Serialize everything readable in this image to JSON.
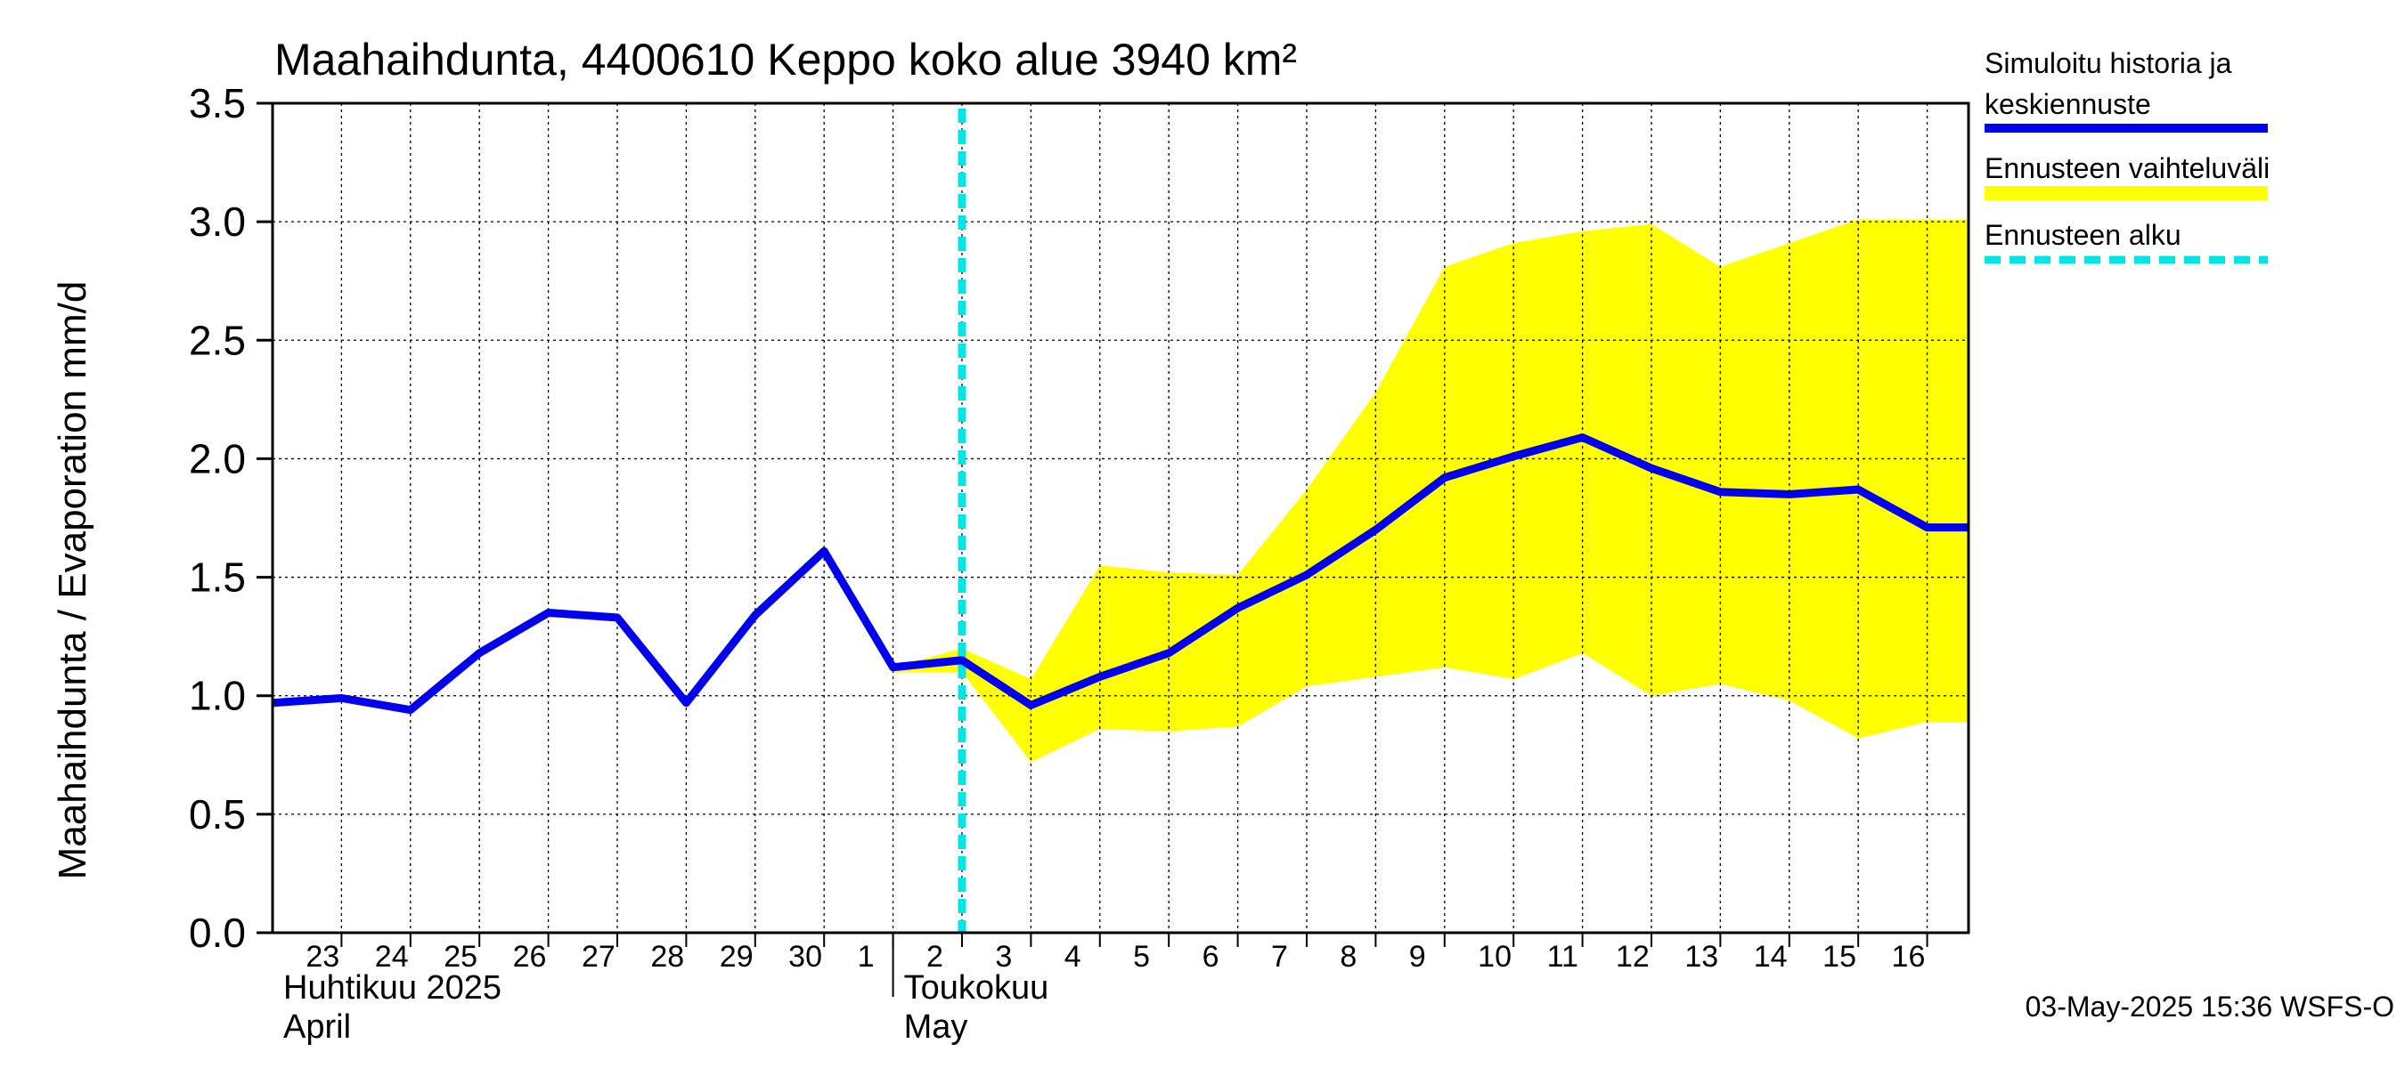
{
  "chart_data": {
    "type": "line",
    "title": "Maahaihdunta, 4400610 Keppo koko alue 3940 km²",
    "ylabel": "Maahaihdunta / Evaporation   mm/d",
    "ylim": [
      0,
      3.5
    ],
    "yticks": [
      "0.0",
      "0.5",
      "1.0",
      "1.5",
      "2.0",
      "2.5",
      "3.0",
      "3.5"
    ],
    "x_start": "2025-04-22",
    "x_end": "2025-05-16",
    "day_labels": [
      {
        "date": "2025-04-23",
        "label": "23"
      },
      {
        "date": "2025-04-24",
        "label": "24"
      },
      {
        "date": "2025-04-25",
        "label": "25"
      },
      {
        "date": "2025-04-26",
        "label": "26"
      },
      {
        "date": "2025-04-27",
        "label": "27"
      },
      {
        "date": "2025-04-28",
        "label": "28"
      },
      {
        "date": "2025-04-29",
        "label": "29"
      },
      {
        "date": "2025-04-30",
        "label": "30"
      },
      {
        "date": "2025-05-01",
        "label": "1"
      },
      {
        "date": "2025-05-02",
        "label": "2"
      },
      {
        "date": "2025-05-03",
        "label": "3"
      },
      {
        "date": "2025-05-04",
        "label": "4"
      },
      {
        "date": "2025-05-05",
        "label": "5"
      },
      {
        "date": "2025-05-06",
        "label": "6"
      },
      {
        "date": "2025-05-07",
        "label": "7"
      },
      {
        "date": "2025-05-08",
        "label": "8"
      },
      {
        "date": "2025-05-09",
        "label": "9"
      },
      {
        "date": "2025-05-10",
        "label": "10"
      },
      {
        "date": "2025-05-11",
        "label": "11"
      },
      {
        "date": "2025-05-12",
        "label": "12"
      },
      {
        "date": "2025-05-13",
        "label": "13"
      },
      {
        "date": "2025-05-14",
        "label": "14"
      },
      {
        "date": "2025-05-15",
        "label": "15"
      },
      {
        "date": "2025-05-16",
        "label": "16"
      }
    ],
    "month_labels": [
      {
        "date": "2025-04-22",
        "fi": "Huhtikuu  2025",
        "en": "April"
      },
      {
        "date": "2025-05-01",
        "fi": "Toukokuu",
        "en": "May"
      }
    ],
    "month_boundary": "2025-05-01",
    "forecast_start": "2025-05-02",
    "series": [
      {
        "name": "Simuloitu historia ja keskiennuste",
        "color": "#0000ee",
        "x": [
          "2025-04-22",
          "2025-04-23",
          "2025-04-24",
          "2025-04-25",
          "2025-04-26",
          "2025-04-27",
          "2025-04-28",
          "2025-04-29",
          "2025-04-30",
          "2025-05-01",
          "2025-05-02",
          "2025-05-03",
          "2025-05-04",
          "2025-05-05",
          "2025-05-06",
          "2025-05-07",
          "2025-05-08",
          "2025-05-09",
          "2025-05-10",
          "2025-05-11",
          "2025-05-12",
          "2025-05-13",
          "2025-05-14",
          "2025-05-15",
          "2025-05-16",
          "2025-05-17"
        ],
        "y": [
          0.97,
          0.99,
          0.94,
          1.18,
          1.35,
          1.33,
          0.97,
          1.34,
          1.61,
          1.12,
          1.15,
          0.96,
          1.08,
          1.18,
          1.37,
          1.51,
          1.7,
          1.92,
          2.01,
          2.09,
          1.96,
          1.86,
          1.85,
          1.87,
          1.71,
          1.71
        ]
      }
    ],
    "band": {
      "name": "Ennusteen vaihteluväli",
      "color": "#ffff00",
      "x": [
        "2025-05-01",
        "2025-05-02",
        "2025-05-03",
        "2025-05-04",
        "2025-05-05",
        "2025-05-06",
        "2025-05-07",
        "2025-05-08",
        "2025-05-09",
        "2025-05-10",
        "2025-05-11",
        "2025-05-12",
        "2025-05-13",
        "2025-05-14",
        "2025-05-15",
        "2025-05-16",
        "2025-05-17"
      ],
      "upper": [
        1.12,
        1.2,
        1.07,
        1.55,
        1.52,
        1.51,
        1.87,
        2.28,
        2.81,
        2.91,
        2.96,
        2.99,
        2.81,
        2.91,
        3.01,
        3.01,
        3.01
      ],
      "lower": [
        1.1,
        1.1,
        0.72,
        0.86,
        0.85,
        0.87,
        1.04,
        1.08,
        1.12,
        1.07,
        1.18,
        1.0,
        1.05,
        0.98,
        0.82,
        0.89,
        0.89
      ]
    },
    "legend": {
      "placement": "right",
      "history_label_1": "Simuloitu historia ja",
      "history_label_2": "keskiennuste",
      "band_label": "Ennusteen vaihteluväli",
      "forecast_label": "Ennusteen alku",
      "forecast_color": "#00e5e5"
    },
    "grid": true,
    "footer": "03-May-2025 15:36 WSFS-O"
  }
}
